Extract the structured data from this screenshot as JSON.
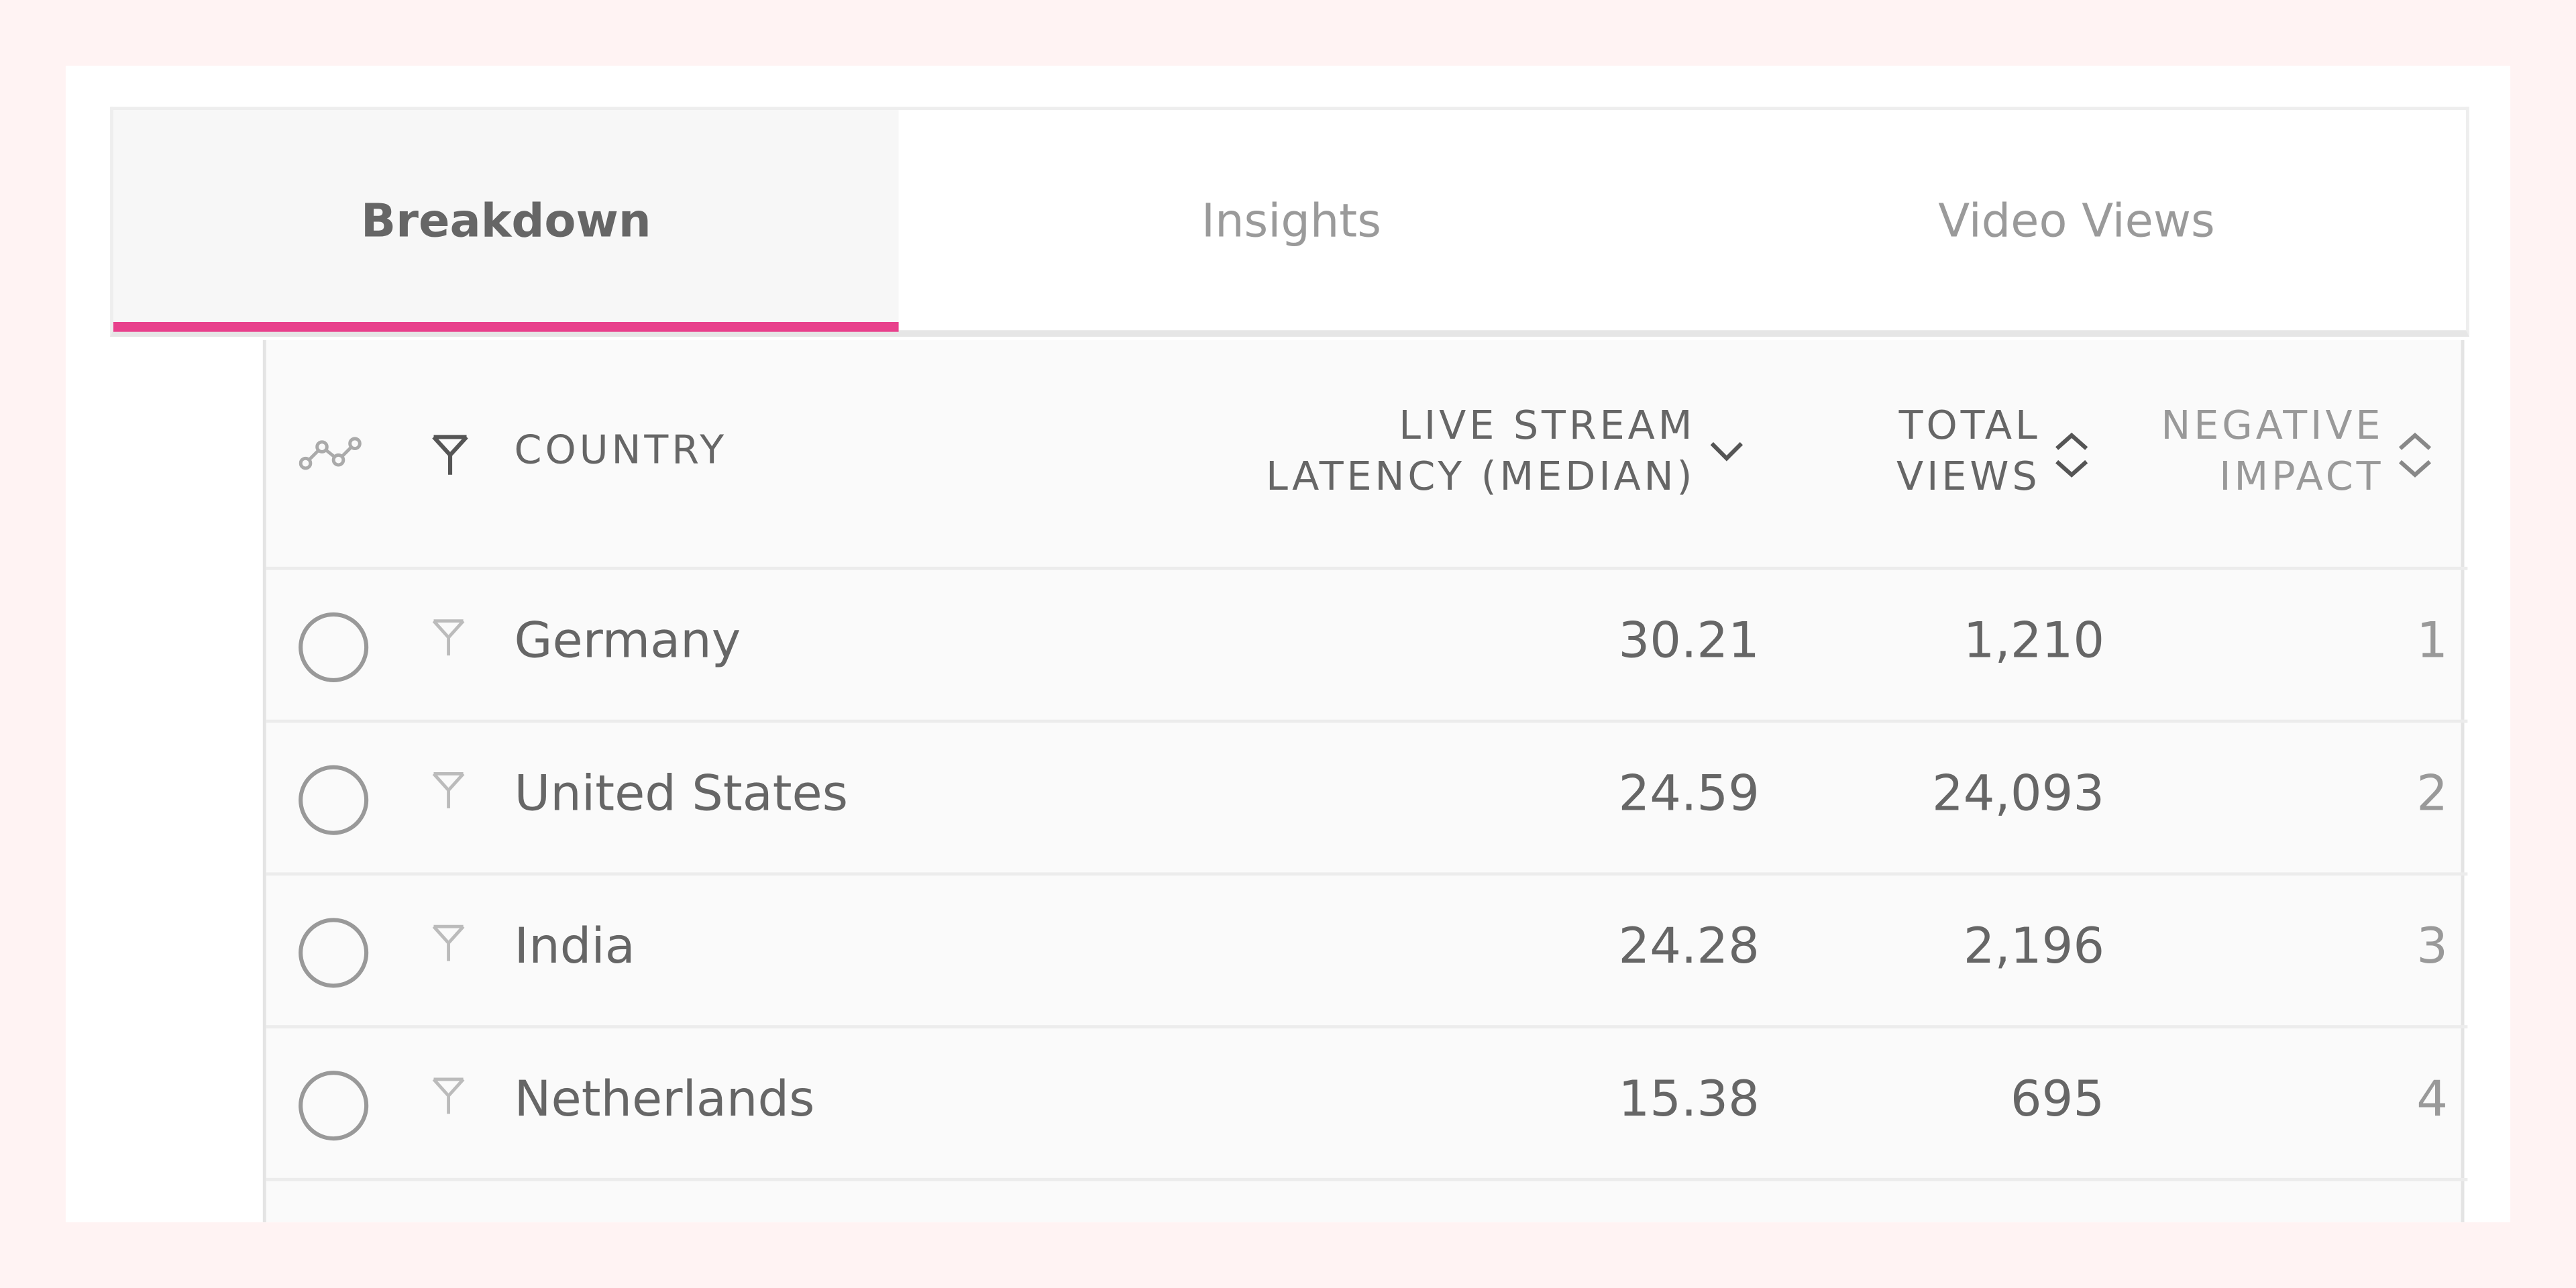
{
  "tabs": [
    "Breakdown",
    "Insights",
    "Video Views"
  ],
  "table": {
    "headers": [
      "COUNTRY",
      "LIVE STREAM LATENCY (MEDIAN)",
      "TOTAL VIEWS",
      "NEGATIVE IMPACT"
    ],
    "rows": [
      [
        "Germany",
        "30.21",
        "1,210",
        "1"
      ],
      [
        "United States",
        "24.59",
        "24,093",
        "2"
      ],
      [
        "India",
        "24.28",
        "2,196",
        "3"
      ],
      [
        "Netherlands",
        "15.38",
        "695",
        "4"
      ]
    ]
  }
}
